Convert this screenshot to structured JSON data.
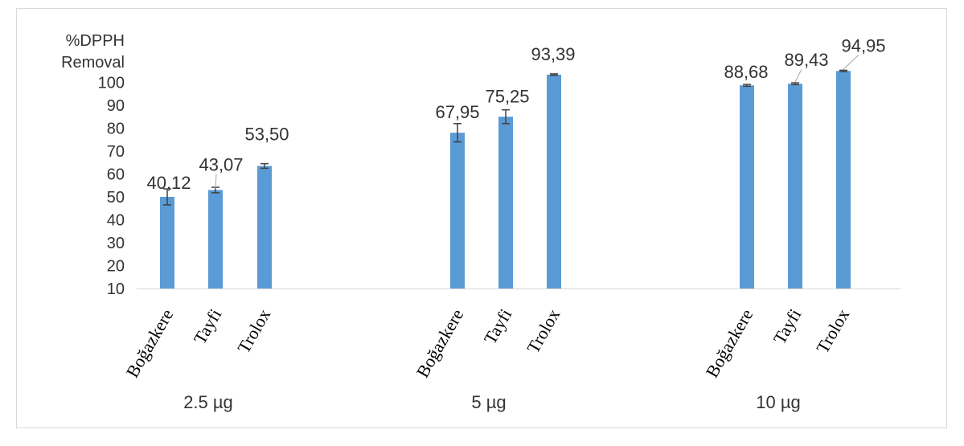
{
  "chart_data": {
    "type": "bar",
    "ylabel_lines": [
      "%DPPH",
      "Removal"
    ],
    "ylim": [
      10,
      100
    ],
    "yticks": [
      10,
      20,
      30,
      40,
      50,
      60,
      70,
      80,
      90,
      100
    ],
    "grid": false,
    "legend": "none",
    "bar_color": "#5b9bd5",
    "groups": [
      {
        "label": "2.5 µg",
        "bars": [
          {
            "category": "Boğazkere",
            "height": 50,
            "error": 3.5,
            "data_label": "40,12"
          },
          {
            "category": "Tayfi",
            "height": 53,
            "error": 1.2,
            "data_label": "43,07"
          },
          {
            "category": "Trolox",
            "height": 63.5,
            "error": 1.0,
            "data_label": "53,50"
          }
        ]
      },
      {
        "label": "5 µg",
        "bars": [
          {
            "category": "Boğazkere",
            "height": 78,
            "error": 4.0,
            "data_label": "67,95"
          },
          {
            "category": "Tayfi",
            "height": 85,
            "error": 3.0,
            "data_label": "75,25"
          },
          {
            "category": "Trolox",
            "height": 103.4,
            "error": 0.3,
            "data_label": "93,39"
          }
        ]
      },
      {
        "label": "10 µg",
        "bars": [
          {
            "category": "Boğazkere",
            "height": 98.7,
            "error": 0.4,
            "data_label": "88,68"
          },
          {
            "category": "Tayfi",
            "height": 99.4,
            "error": 0.4,
            "data_label": "89,43"
          },
          {
            "category": "Trolox",
            "height": 105,
            "error": 0.3,
            "data_label": "94,95"
          }
        ]
      }
    ]
  }
}
